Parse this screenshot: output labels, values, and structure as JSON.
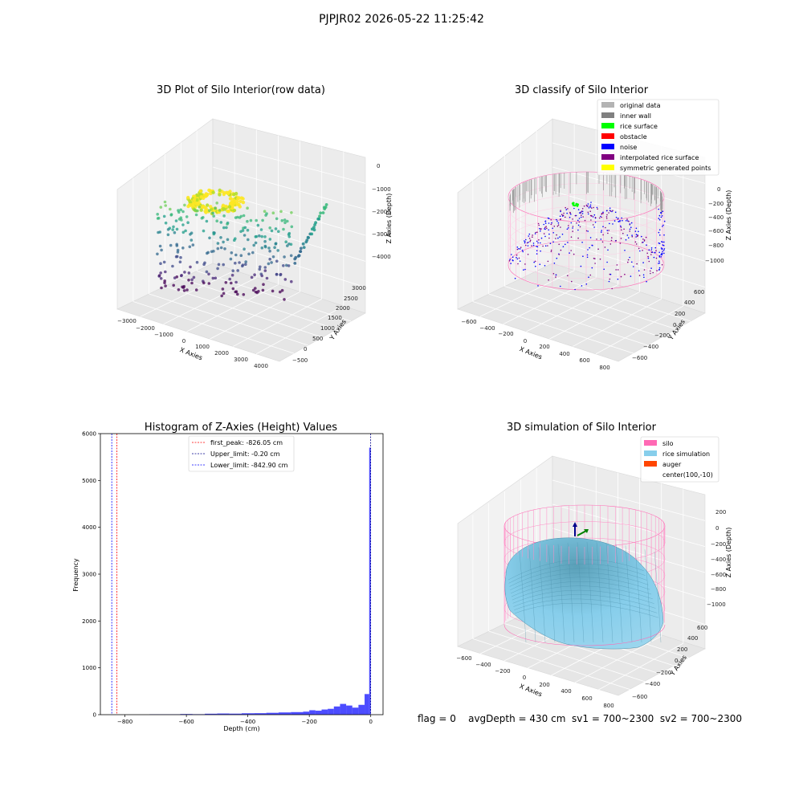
{
  "figure_title": "PJPJR02 2026-05-22 11:25:42",
  "status_line": "flag = 0    avgDepth = 430 cm  sv1 = 700~2300  sv2 = 700~2300",
  "chart_data": [
    {
      "type": "scatter",
      "title": "3D Plot of Silo Interior(row data)",
      "xlabel": "X Axies",
      "ylabel": "Y Axies",
      "zlabel": "Z Axies (Depth)",
      "x_ticks": [
        "−3000",
        "−2000",
        "−1000",
        "0",
        "1000",
        "2000",
        "3000",
        "4000"
      ],
      "y_ticks": [
        "−500",
        "0",
        "500",
        "1000",
        "1500",
        "2000",
        "2500",
        "3000"
      ],
      "z_ticks": [
        "0",
        "−1000",
        "−2000",
        "−3000",
        "−4000"
      ],
      "xlim": [
        -3000,
        4000
      ],
      "ylim": [
        -500,
        3000
      ],
      "zlim": [
        -4500,
        0
      ],
      "colormap": "viridis"
    },
    {
      "type": "scatter",
      "title": "3D classify of Silo Interior",
      "xlabel": "X Axies",
      "ylabel": "Y Axies",
      "zlabel": "Z Axies (Depth)",
      "x_ticks": [
        "−600",
        "−400",
        "−200",
        "0",
        "200",
        "400",
        "600",
        "800"
      ],
      "y_ticks": [
        "−600",
        "−400",
        "−200",
        "0",
        "200",
        "400",
        "600"
      ],
      "z_ticks": [
        "0",
        "−200",
        "−400",
        "−600",
        "−800",
        "−1000"
      ],
      "xlim": [
        -600,
        800
      ],
      "ylim": [
        -600,
        600
      ],
      "zlim": [
        -1000,
        0
      ],
      "legend_position": "top-right",
      "legend": [
        {
          "label": "original data",
          "color": "#b3b3b3"
        },
        {
          "label": "inner wall",
          "color": "#808080"
        },
        {
          "label": "rice surface",
          "color": "#00ff00"
        },
        {
          "label": "obstacle",
          "color": "#ff0000"
        },
        {
          "label": "noise",
          "color": "#0000ff"
        },
        {
          "label": "interpolated rice surface",
          "color": "#800080"
        },
        {
          "label": "symmetric generated points",
          "color": "#ffff00"
        }
      ]
    },
    {
      "type": "bar",
      "title": "Histogram of Z-Axies (Height) Values",
      "xlabel": "Depth (cm)",
      "ylabel": "Frequency",
      "xlim": [
        -880,
        40
      ],
      "ylim": [
        0,
        6000
      ],
      "x_ticks": [
        -800,
        -600,
        -400,
        -200,
        0
      ],
      "x_tick_labels": [
        "−800",
        "−600",
        "−400",
        "−200",
        "0"
      ],
      "y_ticks": [
        0,
        1000,
        2000,
        3000,
        4000,
        5000,
        6000
      ],
      "bar_color": "#0000ff",
      "bins": [
        {
          "x0": -720,
          "x1": -620,
          "value": 8
        },
        {
          "x0": -620,
          "x1": -580,
          "value": 14
        },
        {
          "x0": -580,
          "x1": -540,
          "value": 10
        },
        {
          "x0": -540,
          "x1": -500,
          "value": 20
        },
        {
          "x0": -500,
          "x1": -460,
          "value": 25
        },
        {
          "x0": -460,
          "x1": -420,
          "value": 22
        },
        {
          "x0": -420,
          "x1": -380,
          "value": 30
        },
        {
          "x0": -380,
          "x1": -340,
          "value": 32
        },
        {
          "x0": -340,
          "x1": -300,
          "value": 40
        },
        {
          "x0": -300,
          "x1": -260,
          "value": 48
        },
        {
          "x0": -260,
          "x1": -220,
          "value": 55
        },
        {
          "x0": -220,
          "x1": -200,
          "value": 65
        },
        {
          "x0": -200,
          "x1": -180,
          "value": 95
        },
        {
          "x0": -180,
          "x1": -160,
          "value": 85
        },
        {
          "x0": -160,
          "x1": -140,
          "value": 110
        },
        {
          "x0": -140,
          "x1": -120,
          "value": 125
        },
        {
          "x0": -120,
          "x1": -100,
          "value": 175
        },
        {
          "x0": -100,
          "x1": -80,
          "value": 230
        },
        {
          "x0": -80,
          "x1": -60,
          "value": 195
        },
        {
          "x0": -60,
          "x1": -40,
          "value": 150
        },
        {
          "x0": -40,
          "x1": -20,
          "value": 210
        },
        {
          "x0": -20,
          "x1": -5,
          "value": 440
        },
        {
          "x0": -5,
          "x1": 0,
          "value": 5700
        }
      ],
      "lines": [
        {
          "label": "first_peak: -826.05 cm",
          "value": -826.05,
          "color": "#ff0000"
        },
        {
          "label": "Upper_limit: -0.20 cm",
          "value": -0.2,
          "color": "#00008b"
        },
        {
          "label": "Lower_limit: -842.90 cm",
          "value": -842.9,
          "color": "#0000ff"
        }
      ]
    },
    {
      "type": "area",
      "title": "3D simulation of Silo Interior",
      "xlabel": "X Axies",
      "ylabel": "Y Axies",
      "zlabel": "Z Axies (Depth)",
      "x_ticks": [
        "−600",
        "−400",
        "−200",
        "0",
        "200",
        "400",
        "600",
        "800"
      ],
      "y_ticks": [
        "−600",
        "−400",
        "−200",
        "0",
        "200",
        "400",
        "600"
      ],
      "z_ticks": [
        "200",
        "0",
        "−200",
        "−400",
        "−600",
        "−800",
        "−1000"
      ],
      "legend_position": "top-right",
      "legend": [
        {
          "label": "silo",
          "color": "#ff69b4"
        },
        {
          "label": "rice simulation",
          "color": "#87ceeb"
        },
        {
          "label": "auger",
          "color": "#ff4500"
        },
        {
          "label": "center(100,-10)",
          "color": ""
        }
      ]
    }
  ]
}
